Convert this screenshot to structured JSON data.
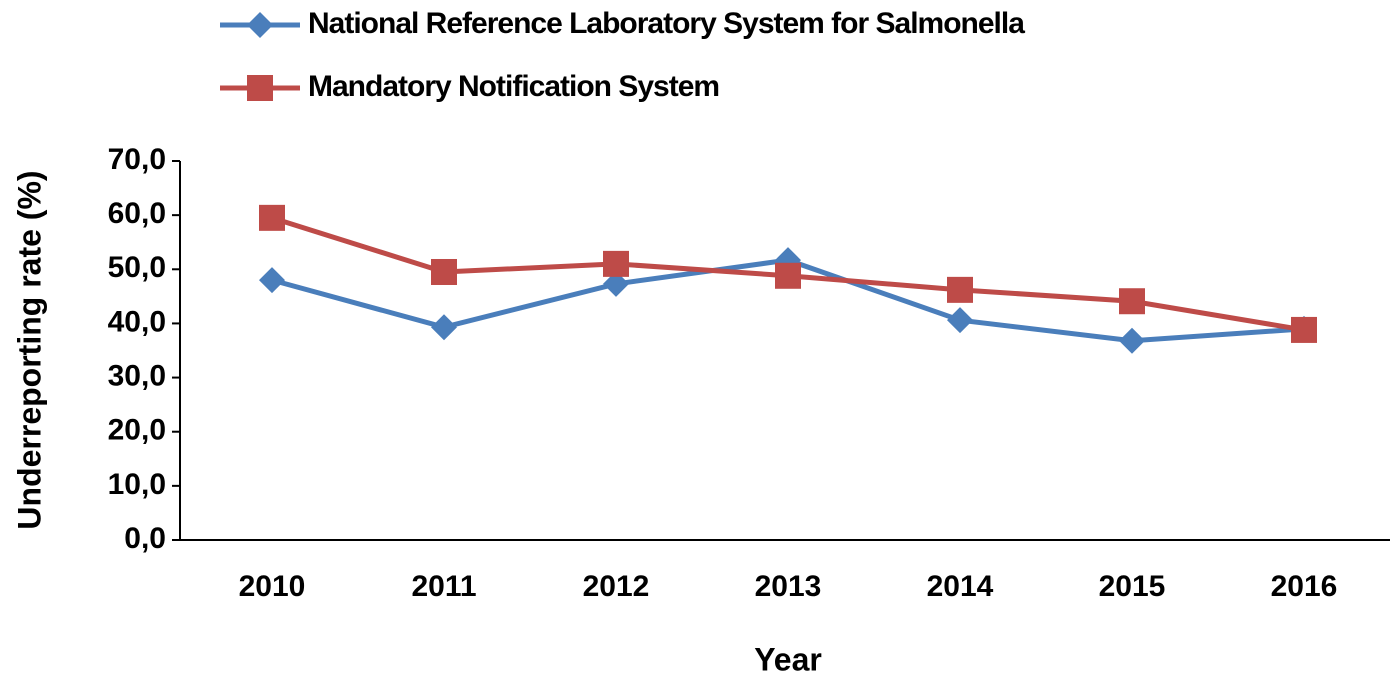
{
  "chart_data": {
    "type": "line",
    "categories": [
      "2010",
      "2011",
      "2012",
      "2013",
      "2014",
      "2015",
      "2016"
    ],
    "series": [
      {
        "name": "National Reference Laboratory System for Salmonella",
        "color": "#4a7ebb",
        "marker": "diamond",
        "values": [
          48.0,
          39.3,
          47.3,
          51.7,
          40.6,
          36.8,
          39.0
        ]
      },
      {
        "name": "Mandatory Notification System",
        "color": "#be4b48",
        "marker": "square",
        "values": [
          59.5,
          49.5,
          51.0,
          48.8,
          46.2,
          44.1,
          38.8
        ]
      }
    ],
    "ylim": [
      0,
      70
    ],
    "yticks": [
      {
        "value": 0,
        "label": "0,0"
      },
      {
        "value": 10,
        "label": "10,0"
      },
      {
        "value": 20,
        "label": "20,0"
      },
      {
        "value": 30,
        "label": "30,0"
      },
      {
        "value": 40,
        "label": "40,0"
      },
      {
        "value": 50,
        "label": "50,0"
      },
      {
        "value": 60,
        "label": "60,0"
      },
      {
        "value": 70,
        "label": "70,0"
      }
    ],
    "y_label": "Underreporting rate (%)",
    "x_label": "Year",
    "legend": "top-left"
  }
}
